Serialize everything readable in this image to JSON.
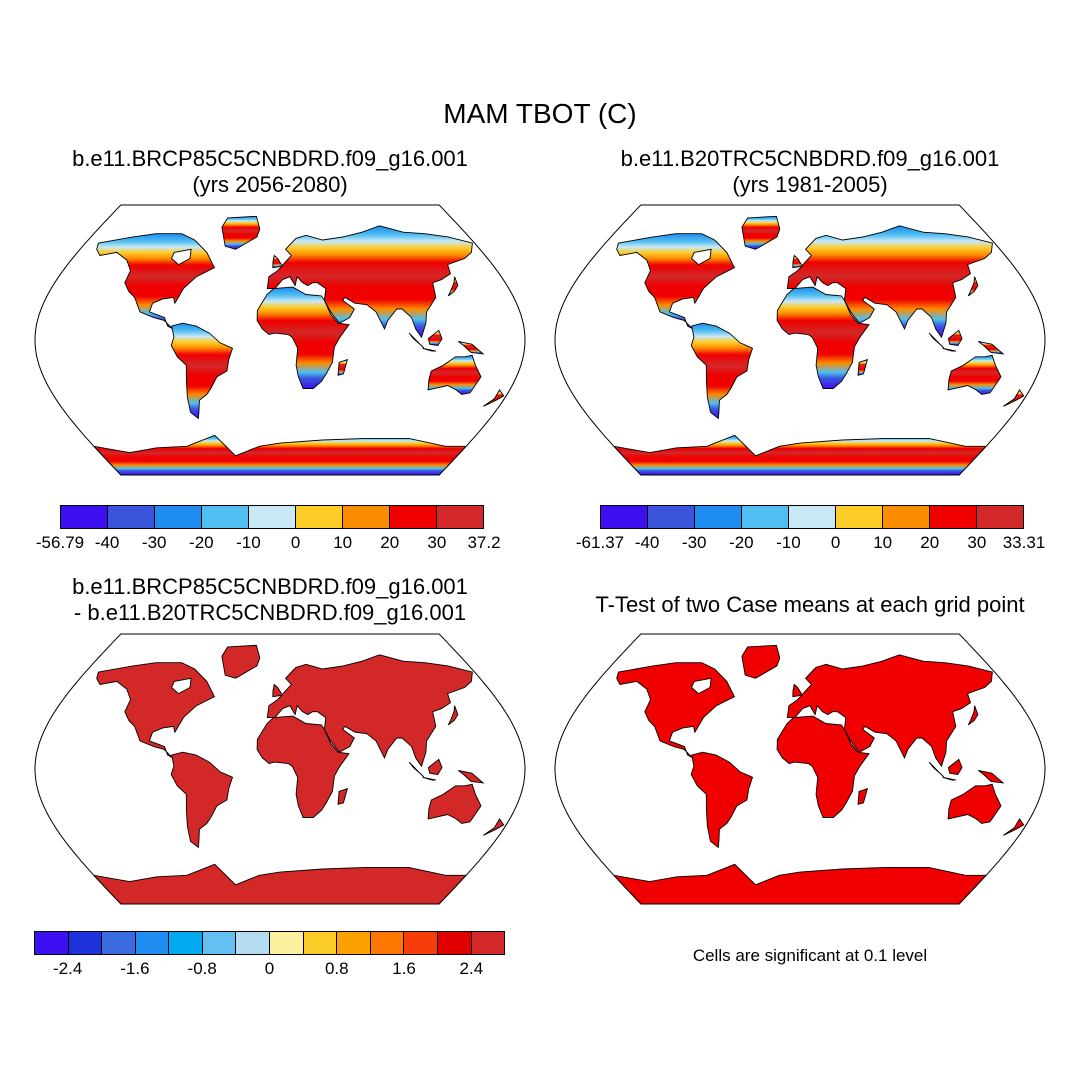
{
  "figure": {
    "title": "MAM TBOT (C)",
    "panels": [
      {
        "id": "p1",
        "title_lines": [
          "b.e11.BRCP85C5CNBDRD.f09_g16.001",
          "(yrs 2056-2080)"
        ],
        "colorbar": {
          "colors": [
            "#3c10f0",
            "#3a55dc",
            "#1e8cf0",
            "#50bef0",
            "#c8e8f6",
            "#fccc28",
            "#fc8c00",
            "#f00000",
            "#d22828"
          ],
          "tick_labels": [
            "-56.79",
            "-40",
            "-30",
            "-20",
            "-10",
            "0",
            "10",
            "20",
            "30",
            "37.2"
          ]
        }
      },
      {
        "id": "p2",
        "title_lines": [
          "b.e11.B20TRC5CNBDRD.f09_g16.001",
          "(yrs 1981-2005)"
        ],
        "colorbar": {
          "colors": [
            "#3c10f0",
            "#3a55dc",
            "#1e8cf0",
            "#50bef0",
            "#c8e8f6",
            "#fccc28",
            "#fc8c00",
            "#f00000",
            "#d22828"
          ],
          "tick_labels": [
            "-61.37",
            "-40",
            "-30",
            "-20",
            "-10",
            "0",
            "10",
            "20",
            "30",
            "33.31"
          ]
        }
      },
      {
        "id": "p3",
        "title_lines": [
          "b.e11.BRCP85C5CNBDRD.f09_g16.001",
          "- b.e11.B20TRC5CNBDRD.f09_g16.001"
        ],
        "colorbar": {
          "colors": [
            "#3c10f0",
            "#1e32dc",
            "#3a6ae0",
            "#1e8cf0",
            "#00aaf0",
            "#64c0f0",
            "#b4dcf0",
            "#fcf0a0",
            "#fccc28",
            "#fca000",
            "#fc7800",
            "#f83c0a",
            "#e00000",
            "#d22828"
          ],
          "tick_labels": [
            "-2.4",
            "-1.6",
            "-0.8",
            "0",
            "0.8",
            "1.6",
            "2.4"
          ]
        }
      },
      {
        "id": "p4",
        "title_lines": [
          "T-Test of two Case means at each grid point"
        ],
        "note": "Cells are significant at 0.1 level"
      }
    ]
  },
  "colors": {
    "land_p1_p3": "#d22828",
    "land_p4": "#f00000",
    "ocean": "#ffffff",
    "outline": "#000000"
  }
}
